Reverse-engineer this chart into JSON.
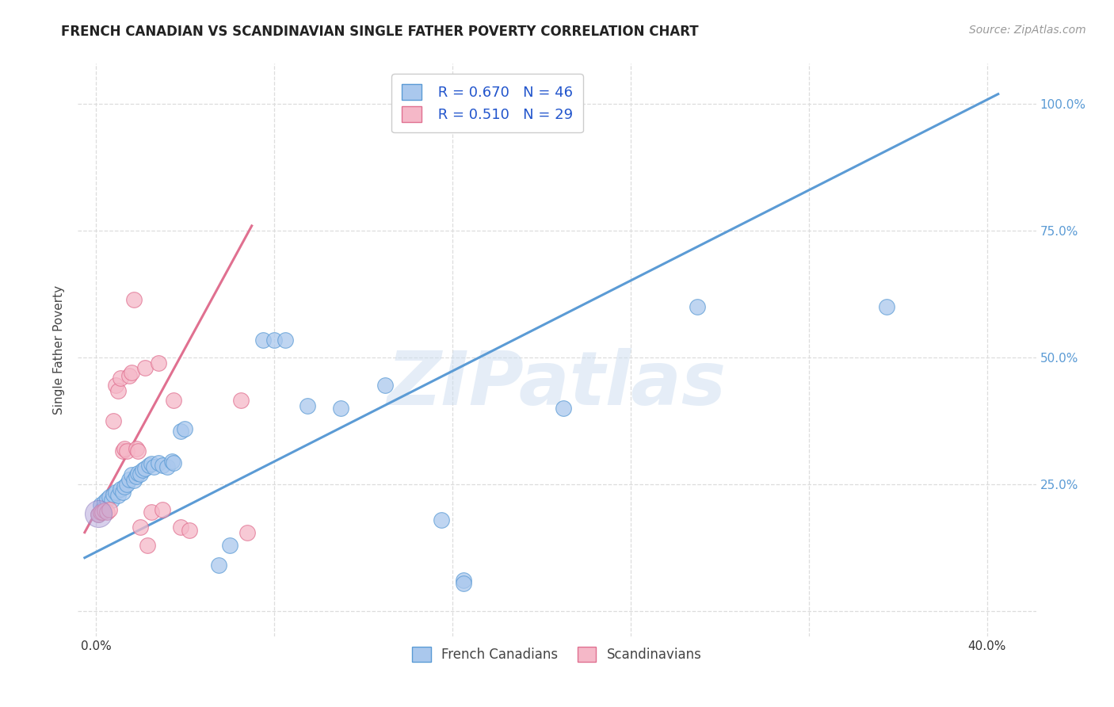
{
  "title": "FRENCH CANADIAN VS SCANDINAVIAN SINGLE FATHER POVERTY CORRELATION CHART",
  "source": "Source: ZipAtlas.com",
  "ylabel": "Single Father Poverty",
  "background_color": "#ffffff",
  "watermark_text": "ZIPatlas",
  "legend_r1": "R = 0.670",
  "legend_n1": "N = 46",
  "legend_r2": "R = 0.510",
  "legend_n2": "N = 29",
  "blue_color": "#aac8ed",
  "pink_color": "#f5b8c8",
  "line_blue": "#5b9bd5",
  "line_pink": "#e07090",
  "blue_scatter": [
    [
      0.001,
      0.19
    ],
    [
      0.002,
      0.21
    ],
    [
      0.003,
      0.2
    ],
    [
      0.004,
      0.215
    ],
    [
      0.005,
      0.22
    ],
    [
      0.006,
      0.225
    ],
    [
      0.007,
      0.218
    ],
    [
      0.008,
      0.23
    ],
    [
      0.009,
      0.235
    ],
    [
      0.01,
      0.228
    ],
    [
      0.011,
      0.24
    ],
    [
      0.012,
      0.235
    ],
    [
      0.013,
      0.245
    ],
    [
      0.014,
      0.25
    ],
    [
      0.015,
      0.26
    ],
    [
      0.016,
      0.268
    ],
    [
      0.017,
      0.258
    ],
    [
      0.018,
      0.265
    ],
    [
      0.019,
      0.272
    ],
    [
      0.02,
      0.27
    ],
    [
      0.021,
      0.278
    ],
    [
      0.022,
      0.282
    ],
    [
      0.024,
      0.288
    ],
    [
      0.025,
      0.29
    ],
    [
      0.026,
      0.285
    ],
    [
      0.028,
      0.292
    ],
    [
      0.03,
      0.288
    ],
    [
      0.032,
      0.285
    ],
    [
      0.034,
      0.295
    ],
    [
      0.035,
      0.292
    ],
    [
      0.038,
      0.355
    ],
    [
      0.04,
      0.36
    ],
    [
      0.055,
      0.09
    ],
    [
      0.06,
      0.13
    ],
    [
      0.075,
      0.535
    ],
    [
      0.08,
      0.535
    ],
    [
      0.085,
      0.535
    ],
    [
      0.095,
      0.405
    ],
    [
      0.11,
      0.4
    ],
    [
      0.13,
      0.445
    ],
    [
      0.155,
      0.18
    ],
    [
      0.165,
      0.06
    ],
    [
      0.21,
      0.4
    ],
    [
      0.27,
      0.6
    ],
    [
      0.355,
      0.6
    ],
    [
      0.165,
      0.055
    ]
  ],
  "pink_scatter": [
    [
      0.001,
      0.19
    ],
    [
      0.002,
      0.195
    ],
    [
      0.003,
      0.195
    ],
    [
      0.004,
      0.198
    ],
    [
      0.005,
      0.195
    ],
    [
      0.006,
      0.2
    ],
    [
      0.008,
      0.375
    ],
    [
      0.009,
      0.445
    ],
    [
      0.01,
      0.435
    ],
    [
      0.011,
      0.46
    ],
    [
      0.012,
      0.315
    ],
    [
      0.013,
      0.32
    ],
    [
      0.014,
      0.315
    ],
    [
      0.015,
      0.465
    ],
    [
      0.016,
      0.47
    ],
    [
      0.017,
      0.615
    ],
    [
      0.018,
      0.32
    ],
    [
      0.019,
      0.315
    ],
    [
      0.022,
      0.48
    ],
    [
      0.028,
      0.49
    ],
    [
      0.02,
      0.165
    ],
    [
      0.023,
      0.13
    ],
    [
      0.025,
      0.195
    ],
    [
      0.03,
      0.2
    ],
    [
      0.035,
      0.415
    ],
    [
      0.038,
      0.165
    ],
    [
      0.042,
      0.16
    ],
    [
      0.065,
      0.415
    ],
    [
      0.068,
      0.155
    ]
  ],
  "blue_line_x": [
    -0.005,
    0.405
  ],
  "blue_line_y": [
    0.105,
    1.02
  ],
  "pink_line_x": [
    -0.005,
    0.07
  ],
  "pink_line_y": [
    0.155,
    0.76
  ],
  "xlim": [
    -0.008,
    0.422
  ],
  "ylim": [
    -0.05,
    1.08
  ],
  "xtick_positions": [
    0.0,
    0.08,
    0.16,
    0.24,
    0.32,
    0.4
  ],
  "xtick_labels": [
    "0.0%",
    "",
    "",
    "",
    "",
    "40.0%"
  ],
  "ytick_positions": [
    0.0,
    0.25,
    0.5,
    0.75,
    1.0
  ],
  "ytick_labels_right": [
    "",
    "25.0%",
    "50.0%",
    "75.0%",
    "100.0%"
  ],
  "grid_color": "#dddddd",
  "title_fontsize": 12,
  "axis_label_color": "#444444",
  "right_tick_color": "#5b9bd5"
}
